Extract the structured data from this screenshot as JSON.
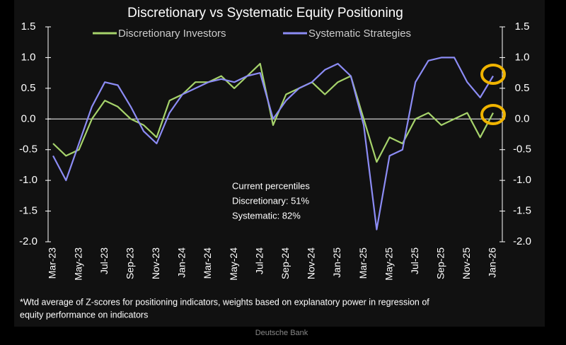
{
  "chart_data": {
    "type": "line",
    "title": "Discretionary  vs Systematic Equity Positioning",
    "categories": [
      "Mar-23",
      null,
      "May-23",
      null,
      "Jul-23",
      null,
      "Sep-23",
      null,
      "Nov-23",
      null,
      "Jan-24",
      null,
      "Mar-24",
      null,
      "May-24",
      null,
      "Jul-24",
      null,
      "Sep-24",
      null,
      "Nov-24",
      null,
      "Jan-25",
      null,
      "Mar-25",
      null,
      "May-25",
      null,
      "Jul-25",
      null,
      "Sep-25",
      null,
      "Nov-25",
      null,
      "Jan-26"
    ],
    "series": [
      {
        "name": "Discretionary Investors",
        "color": "#a6d36b",
        "values": [
          -0.4,
          -0.6,
          -0.5,
          0.0,
          0.3,
          0.2,
          0.0,
          -0.1,
          -0.3,
          0.3,
          0.4,
          0.6,
          0.6,
          0.7,
          0.5,
          0.7,
          0.9,
          -0.1,
          0.4,
          0.5,
          0.6,
          0.4,
          0.6,
          0.7,
          0.0,
          -0.7,
          -0.3,
          -0.4,
          0.0,
          0.1,
          -0.1,
          0.0,
          0.1,
          -0.3,
          0.1
        ]
      },
      {
        "name": "Systematic Strategies",
        "color": "#8c8cf5",
        "values": [
          -0.6,
          -1.0,
          -0.4,
          0.2,
          0.6,
          0.55,
          0.2,
          -0.2,
          -0.4,
          0.1,
          0.4,
          0.5,
          0.6,
          0.65,
          0.6,
          0.7,
          0.75,
          0.0,
          0.3,
          0.5,
          0.6,
          0.8,
          0.9,
          0.7,
          -0.1,
          -1.8,
          -0.6,
          -0.5,
          0.6,
          0.95,
          1.0,
          1.0,
          0.6,
          0.35,
          0.7
        ]
      }
    ],
    "ylim": [
      -2,
      1.5
    ],
    "yticks": [
      1.5,
      {
        "value": 1,
        "label": "1.0"
      },
      0.5,
      {
        "value": 0,
        "label": "0.0"
      },
      -0.5,
      {
        "value": -1,
        "label": "-1.0"
      },
      -1.5,
      {
        "value": -2,
        "label": "-2.0"
      }
    ],
    "y2lim": [
      -2,
      1.5
    ],
    "y2ticks": [
      1.5,
      {
        "value": 1,
        "label": "1.0"
      },
      0.5,
      {
        "value": 0,
        "label": "0.0"
      },
      -0.5,
      {
        "value": -1,
        "label": "-1.0"
      },
      -1.5,
      {
        "value": -2,
        "label": "-2.0"
      }
    ],
    "annotation": [
      "Current percentiles",
      "Discretionary: 51%",
      "Systematic: 82%"
    ],
    "footnote": [
      "*Wtd average of Z-scores for positioning indicators, weights based on explanatory power in regression of",
      "equity performance on indicators"
    ],
    "source": "Deutsche Bank"
  }
}
